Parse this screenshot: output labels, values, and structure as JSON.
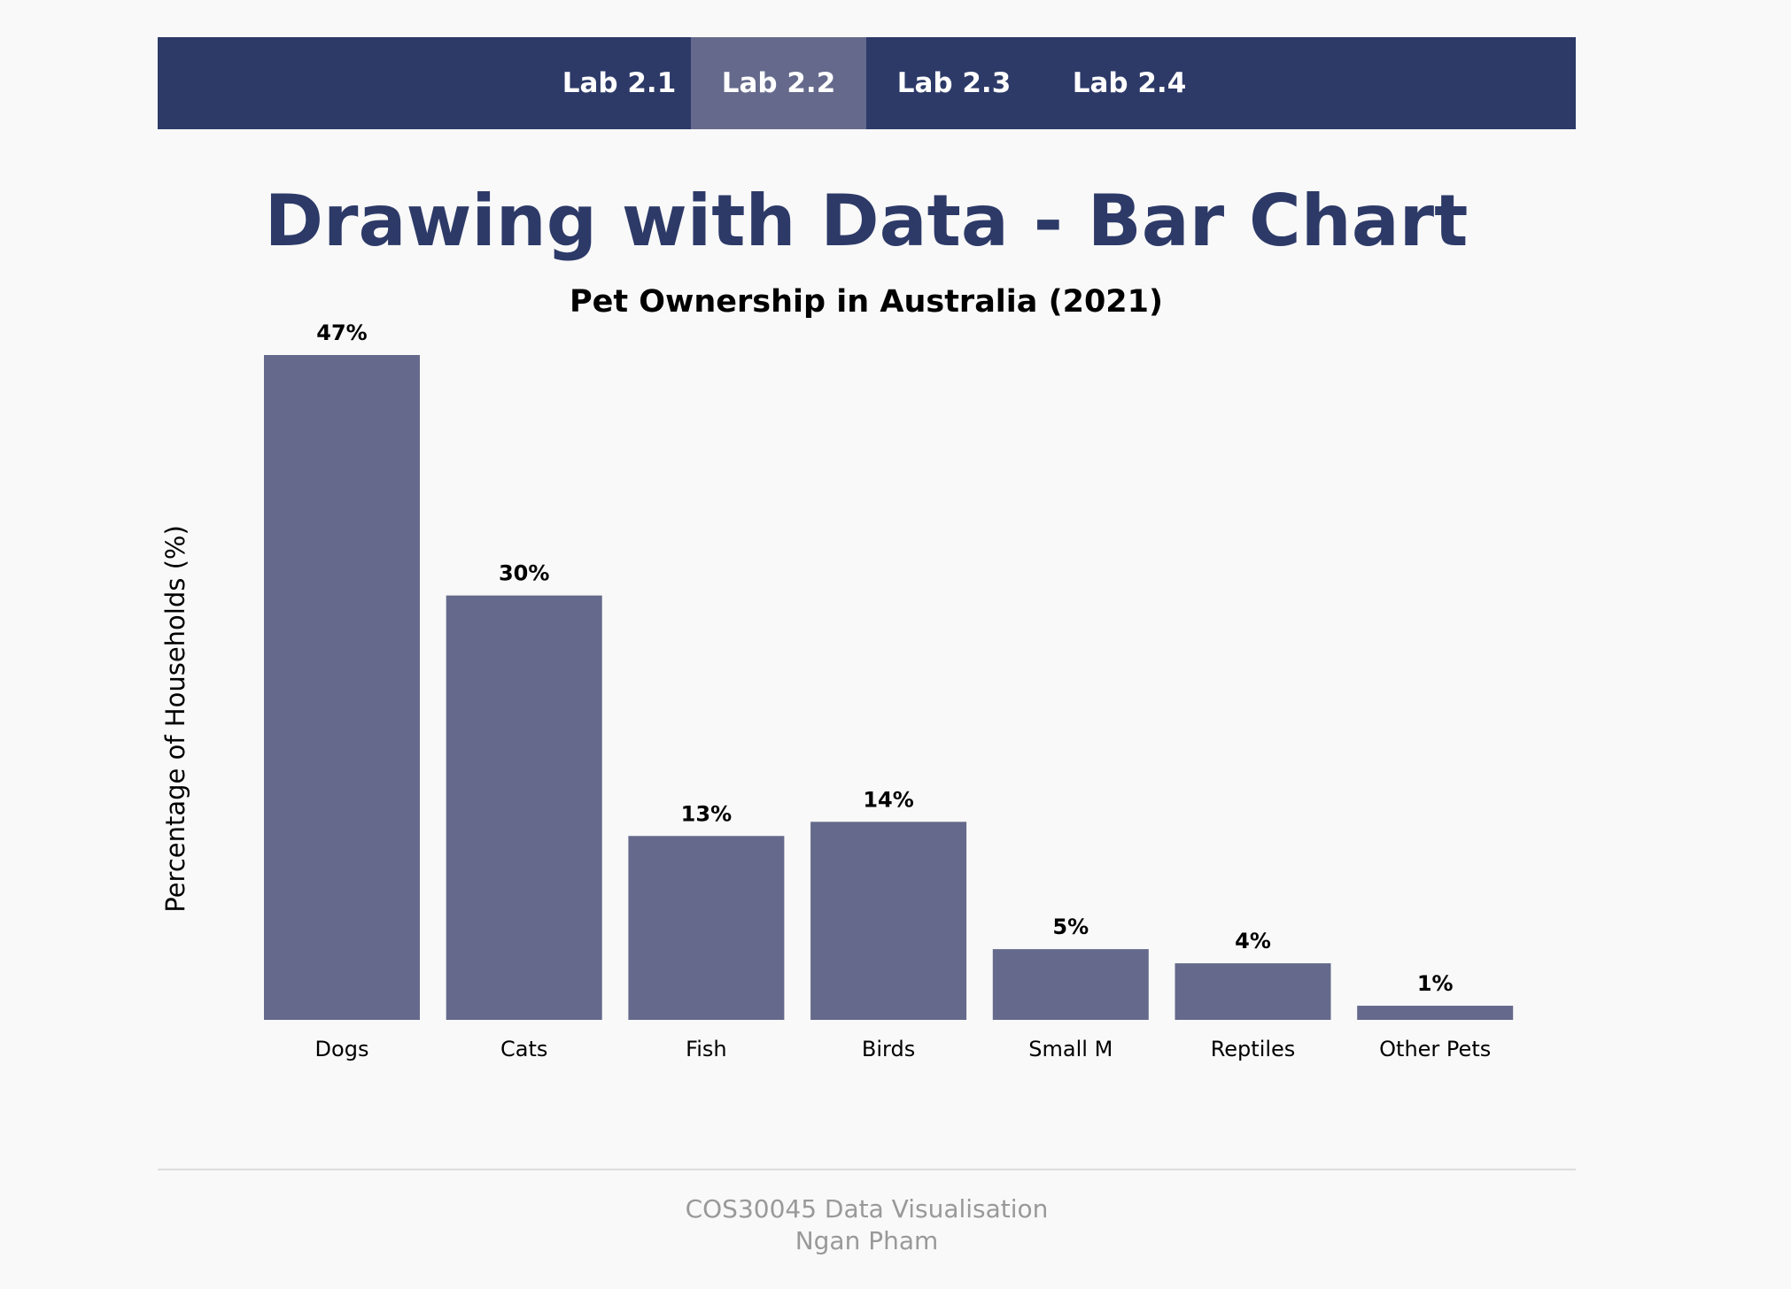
{
  "nav": {
    "tabs": [
      {
        "label": "Lab 2.1",
        "active": false
      },
      {
        "label": "Lab 2.2",
        "active": true
      },
      {
        "label": "Lab 2.3",
        "active": false
      },
      {
        "label": "Lab 2.4",
        "active": false
      }
    ]
  },
  "page": {
    "title": "Drawing with Data - Bar Chart"
  },
  "chart_data": {
    "type": "bar",
    "title": "Pet Ownership in Australia (2021)",
    "ylabel": "Percentage of Households (%)",
    "xlabel": "",
    "categories": [
      "Dogs",
      "Cats",
      "Fish",
      "Birds",
      "Small M",
      "Reptiles",
      "Other Pets"
    ],
    "values": [
      47,
      30,
      13,
      14,
      5,
      4,
      1
    ],
    "value_labels": [
      "47%",
      "30%",
      "13%",
      "14%",
      "5%",
      "4%",
      "1%"
    ],
    "ylim": [
      0,
      47
    ],
    "grid": false,
    "bar_color": "#656a8c"
  },
  "footer": {
    "course": "COS30045 Data Visualisation",
    "author": "Ngan Pham"
  },
  "colors": {
    "nav_bg": "#2d3a68",
    "nav_active": "#656a8c",
    "title": "#2d3a68",
    "footer_text": "#999999"
  }
}
